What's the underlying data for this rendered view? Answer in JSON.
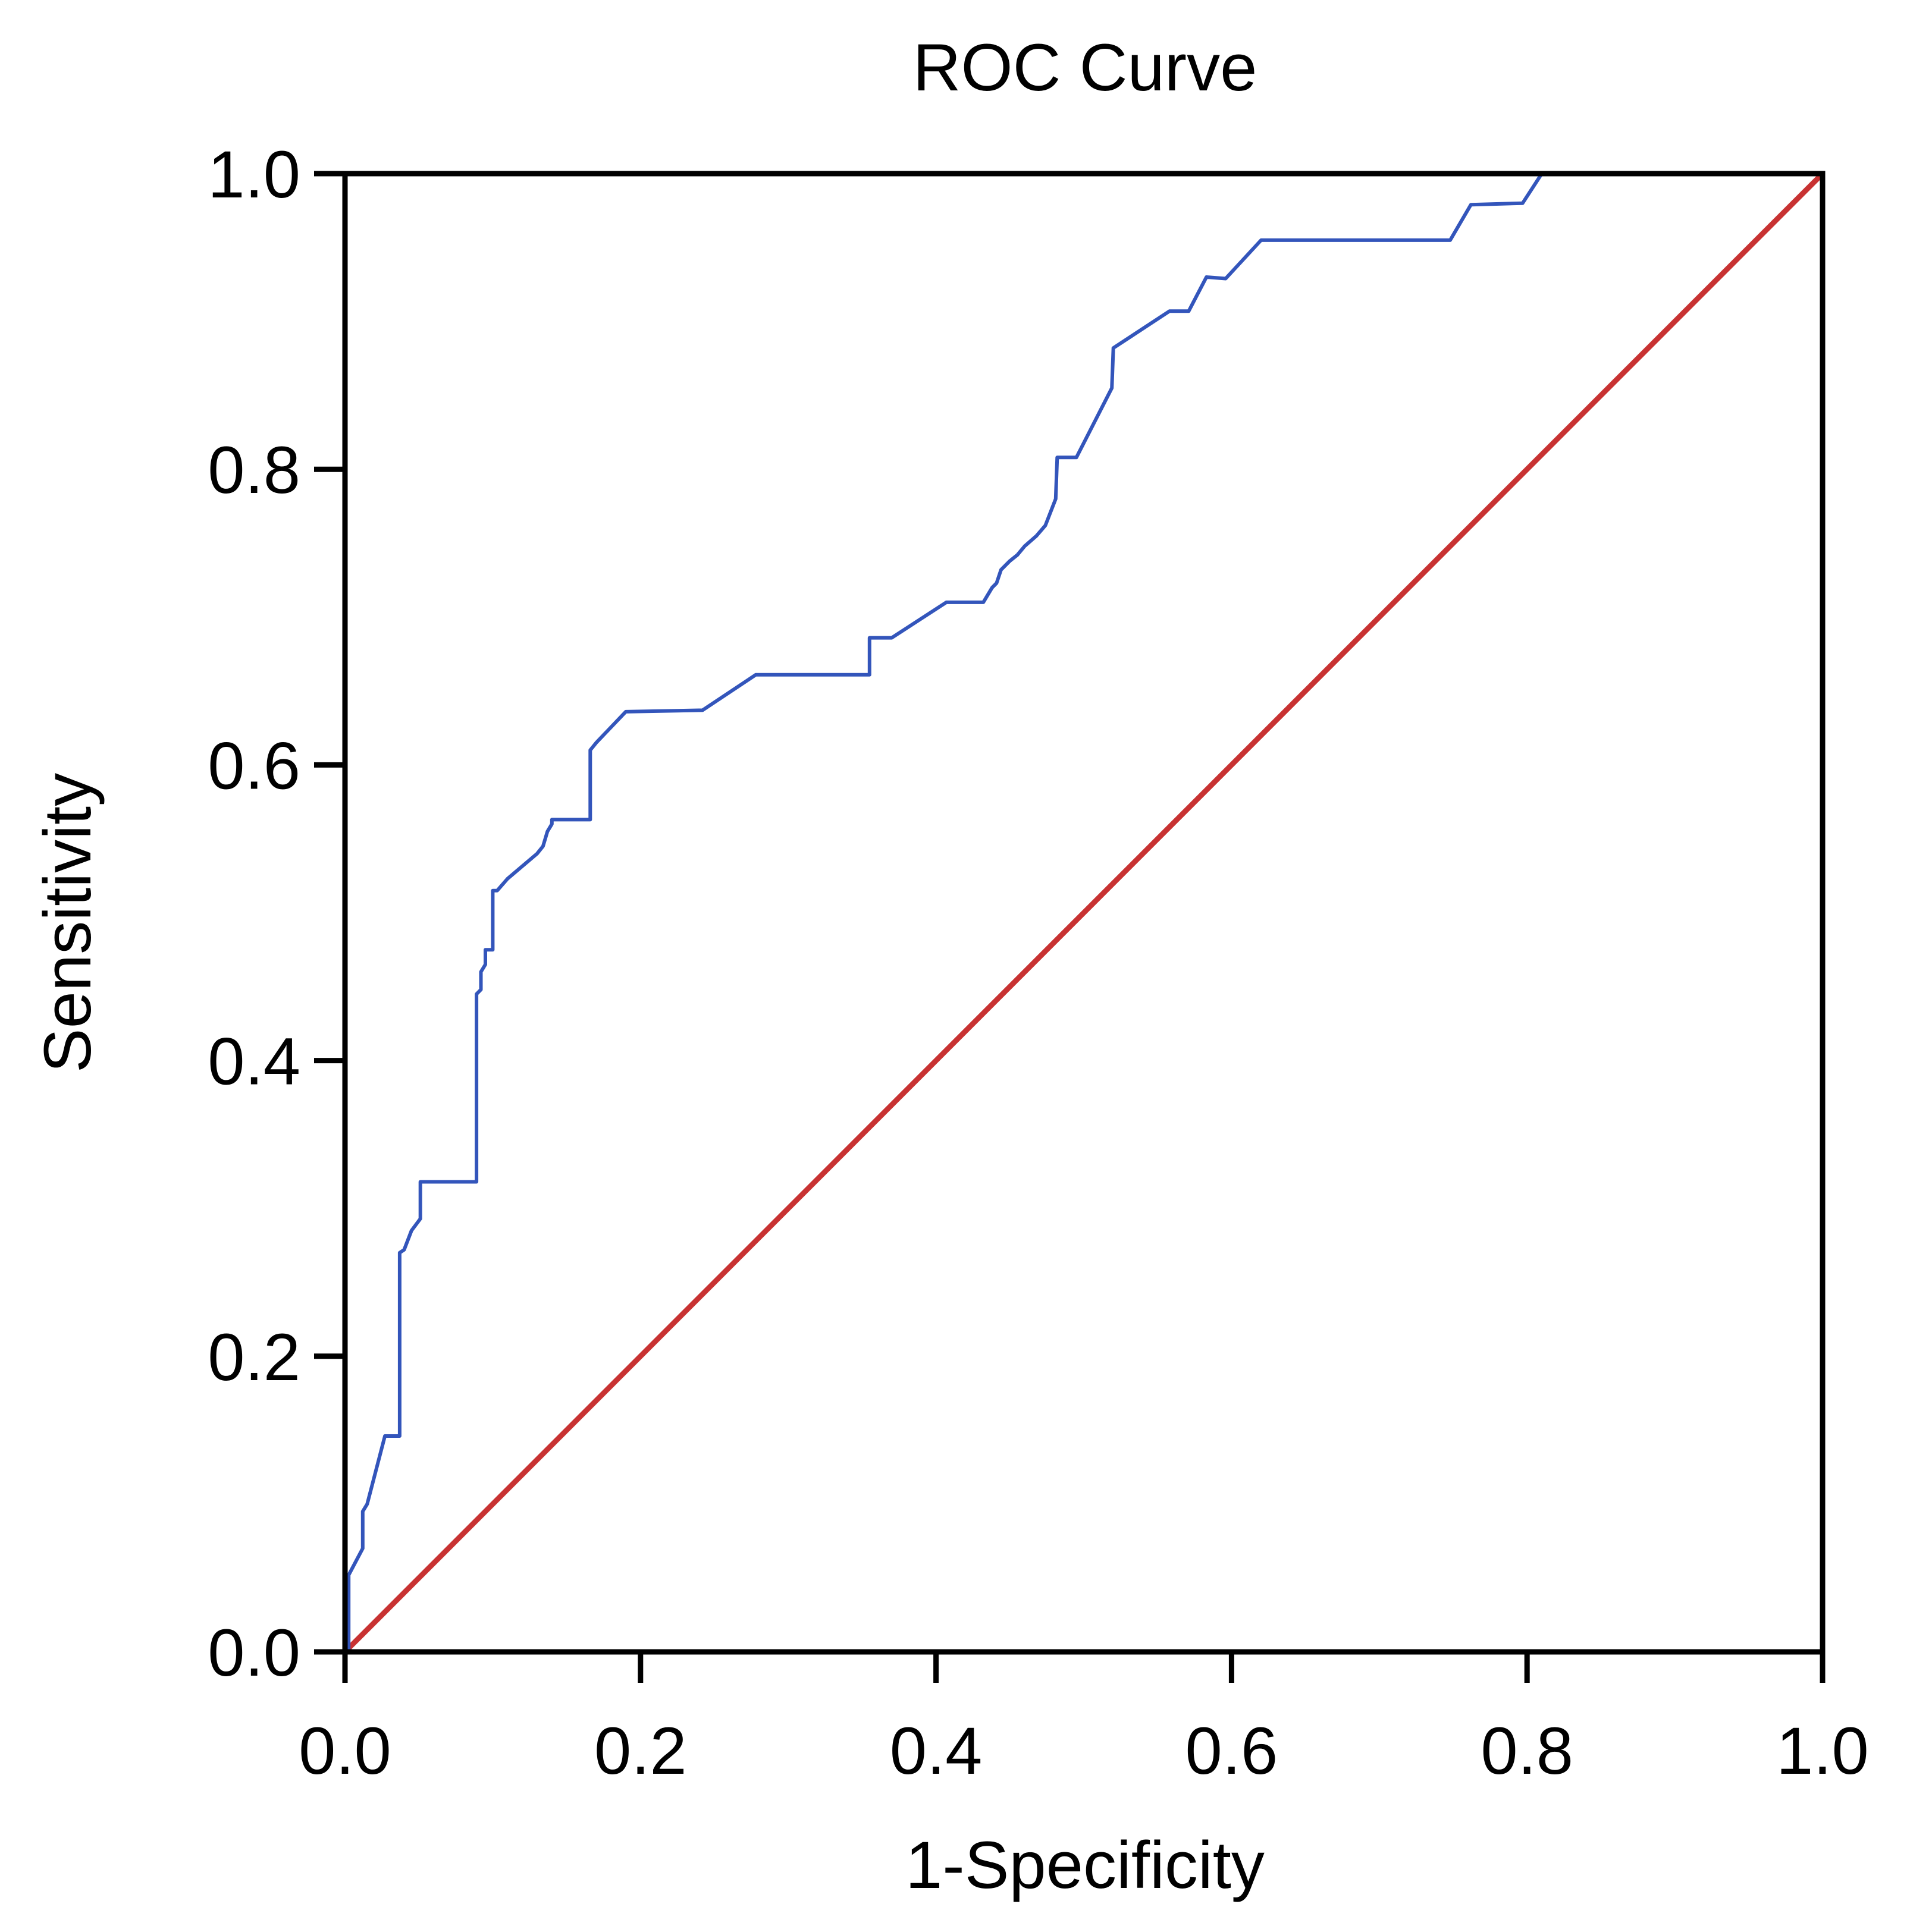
{
  "chart_data": {
    "type": "line",
    "title": "ROC Curve",
    "xlabel": "1-Specificity",
    "ylabel": "Sensitivity",
    "xlim": [
      0,
      1
    ],
    "ylim": [
      0,
      1
    ],
    "x_ticks": [
      "0.0",
      "0.2",
      "0.4",
      "0.6",
      "0.8",
      "1.0"
    ],
    "y_ticks": [
      "0.0",
      "0.2",
      "0.4",
      "0.6",
      "0.8",
      "1.0"
    ],
    "grid": false,
    "legend": "none",
    "colors": {
      "roc": "#3355bb",
      "reference": "#c83232",
      "axis": "#000000"
    },
    "series": [
      {
        "color": "#3355bb",
        "points": [
          [
            0.0,
            0.0
          ],
          [
            0.0025,
            0.0
          ],
          [
            0.0025,
            0.052
          ],
          [
            0.012,
            0.07
          ],
          [
            0.012,
            0.095
          ],
          [
            0.015,
            0.1
          ],
          [
            0.027,
            0.146
          ],
          [
            0.037,
            0.146
          ],
          [
            0.037,
            0.27
          ],
          [
            0.04,
            0.272
          ],
          [
            0.045,
            0.285
          ],
          [
            0.051,
            0.293
          ],
          [
            0.051,
            0.318
          ],
          [
            0.089,
            0.318
          ],
          [
            0.089,
            0.445
          ],
          [
            0.092,
            0.448
          ],
          [
            0.092,
            0.46
          ],
          [
            0.095,
            0.465
          ],
          [
            0.095,
            0.475
          ],
          [
            0.1,
            0.475
          ],
          [
            0.1,
            0.515
          ],
          [
            0.103,
            0.515
          ],
          [
            0.11,
            0.523
          ],
          [
            0.13,
            0.54
          ],
          [
            0.134,
            0.545
          ],
          [
            0.137,
            0.555
          ],
          [
            0.14,
            0.56
          ],
          [
            0.14,
            0.563
          ],
          [
            0.166,
            0.563
          ],
          [
            0.166,
            0.61
          ],
          [
            0.17,
            0.615
          ],
          [
            0.19,
            0.636
          ],
          [
            0.242,
            0.637
          ],
          [
            0.278,
            0.661
          ],
          [
            0.355,
            0.661
          ],
          [
            0.355,
            0.686
          ],
          [
            0.37,
            0.686
          ],
          [
            0.407,
            0.71
          ],
          [
            0.432,
            0.71
          ],
          [
            0.438,
            0.72
          ],
          [
            0.441,
            0.723
          ],
          [
            0.444,
            0.732
          ],
          [
            0.45,
            0.738
          ],
          [
            0.455,
            0.742
          ],
          [
            0.46,
            0.748
          ],
          [
            0.468,
            0.755
          ],
          [
            0.474,
            0.762
          ],
          [
            0.481,
            0.78
          ],
          [
            0.482,
            0.808
          ],
          [
            0.495,
            0.808
          ],
          [
            0.519,
            0.855
          ],
          [
            0.52,
            0.882
          ],
          [
            0.558,
            0.907
          ],
          [
            0.571,
            0.907
          ],
          [
            0.583,
            0.93
          ],
          [
            0.596,
            0.929
          ],
          [
            0.62,
            0.955
          ],
          [
            0.748,
            0.955
          ],
          [
            0.762,
            0.979
          ],
          [
            0.797,
            0.98
          ],
          [
            0.81,
            1.0
          ],
          [
            1.0,
            1.0
          ]
        ]
      },
      {
        "color": "#c83232",
        "points": [
          [
            0.0,
            0.0
          ],
          [
            1.0,
            1.0
          ]
        ]
      }
    ]
  }
}
